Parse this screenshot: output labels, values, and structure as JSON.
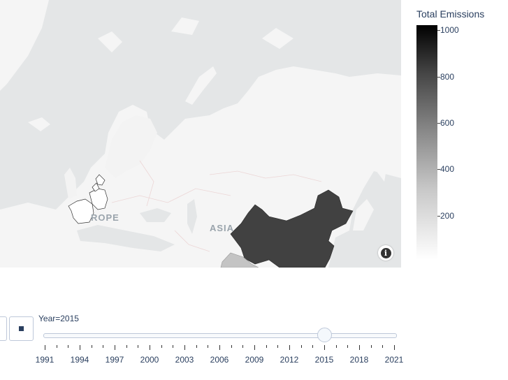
{
  "map": {
    "region_labels": [
      "ROPE",
      "ASIA"
    ],
    "basemap_colors": {
      "ocean": "#e4e6e7",
      "land": "#f5f5f5",
      "borders": "#f0d8d8"
    },
    "countries": [
      {
        "name": "China",
        "emissions": 820,
        "color": "#414141"
      },
      {
        "name": "India",
        "emissions": 290,
        "color": "#c4c4c4"
      },
      {
        "name": "France",
        "emissions": 5,
        "color": "#ffffff"
      },
      {
        "name": "Germany",
        "emissions": 10,
        "color": "#ffffff"
      },
      {
        "name": "Netherlands",
        "emissions": 3,
        "color": "#ffffff"
      },
      {
        "name": "Denmark",
        "emissions": 2,
        "color": "#ffffff"
      }
    ],
    "info_icon": "info-icon"
  },
  "colorbar": {
    "title": "Total Emissions",
    "ticks": [
      "1000",
      "800",
      "600",
      "400",
      "200"
    ],
    "range": [
      0,
      1000
    ],
    "colors": [
      "#ffffff",
      "#000000"
    ]
  },
  "slider": {
    "prefix_label": "Year=2015",
    "selected": 2015,
    "min": 1991,
    "max": 2021,
    "tick_labels": [
      "1991",
      "1994",
      "1997",
      "2000",
      "2003",
      "2006",
      "2009",
      "2012",
      "2015",
      "2018",
      "2021"
    ],
    "play_icon": "play-icon",
    "stop_icon": "stop-icon"
  }
}
